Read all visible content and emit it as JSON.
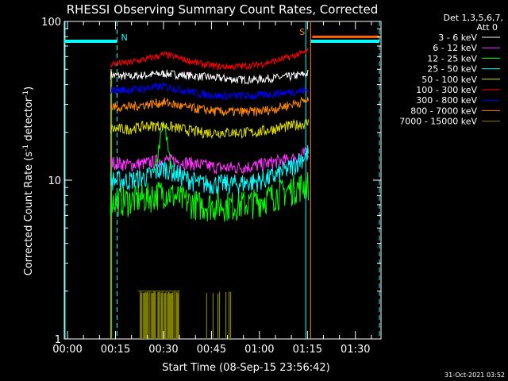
{
  "chart_data": {
    "type": "line",
    "title": "RHESSI Observing Summary Count Rates, Corrected",
    "xlabel": "Start Time (08-Sep-15 23:56:42)",
    "ylabel_main": "Corrected Count Rate (s",
    "ylabel_sup1": "-1",
    "ylabel_mid": " detector",
    "ylabel_sup2": "-1",
    "ylabel_end": ")",
    "yscale": "log",
    "ylim": [
      1,
      100
    ],
    "xlim_minutes_after_start": [
      -1,
      98
    ],
    "x_tick_labels": [
      "00:00",
      "00:15",
      "00:30",
      "00:45",
      "01:00",
      "01:15",
      "01:30"
    ],
    "y_tick_labels": [
      "1",
      "10",
      "100"
    ],
    "legend_header": [
      "Det 1,3,5,6,7,",
      "Att 0"
    ],
    "legend_position": "right",
    "data_start_min": 13.5,
    "data_end_min": 75.5,
    "series": [
      {
        "name": "3 - 6 keV",
        "color": "#ffffff",
        "values": [
          46,
          45,
          46,
          47,
          46,
          45,
          44,
          43,
          43,
          44,
          45,
          47
        ]
      },
      {
        "name": "6 - 12 keV",
        "color": "#ff33ff",
        "values": [
          13,
          12.5,
          12.8,
          13.5,
          13,
          12.5,
          12,
          12,
          12.3,
          13,
          13.5,
          15
        ]
      },
      {
        "name": "12 - 25 keV",
        "color": "#00ff00",
        "values": [
          7.5,
          7.5,
          7.8,
          8.5,
          7.5,
          7,
          7,
          7,
          7.3,
          8,
          8.8,
          9.5
        ]
      },
      {
        "name": "25 - 50 keV",
        "color": "#00ffff",
        "values": [
          10,
          10,
          10.5,
          12,
          10.5,
          9.5,
          9.5,
          9.5,
          9.8,
          10.5,
          12,
          15
        ]
      },
      {
        "name": "50 - 100 keV",
        "color": "#dddd00",
        "values": [
          21,
          21,
          22,
          22,
          21,
          20,
          20,
          20,
          20,
          21,
          22,
          23
        ]
      },
      {
        "name": "100 - 300 keV",
        "color": "#ff0000",
        "values": [
          54,
          55,
          58,
          62,
          58,
          54,
          52,
          52,
          53,
          56,
          60,
          65
        ]
      },
      {
        "name": "300 - 800 keV",
        "color": "#0000ff",
        "values": [
          37,
          37,
          38,
          39,
          37,
          35,
          34,
          34,
          34,
          35,
          36,
          37
        ]
      },
      {
        "name": "800 - 7000 keV",
        "color": "#ff8800",
        "values": [
          29,
          29,
          30,
          31,
          29,
          28,
          27,
          27,
          27,
          28,
          30,
          32
        ]
      },
      {
        "name": "7000 - 15000 keV",
        "color": "#808000",
        "values": [
          1,
          1,
          1,
          1,
          1,
          1,
          1,
          1,
          1,
          1,
          1,
          1
        ]
      }
    ],
    "annotations": {
      "night_label": "N",
      "saa_label": "S",
      "timestamp": "31-Oct-2021 03:52"
    },
    "markers": {
      "night_bar": {
        "x_start": -1,
        "x_end": 15.5,
        "y": 75,
        "color": "#00ffff"
      },
      "night_dashed": [
        15.5,
        97.5
      ],
      "saa_solid_lines": [
        74.5,
        76.0
      ],
      "saa_bar": {
        "x_start": 76.5,
        "x_end": 97.5,
        "y": 80,
        "color": "#ff6600"
      },
      "night_bar2": {
        "x_start": 76,
        "x_end": 97.5,
        "y": 75,
        "color": "#00ffff"
      }
    }
  }
}
